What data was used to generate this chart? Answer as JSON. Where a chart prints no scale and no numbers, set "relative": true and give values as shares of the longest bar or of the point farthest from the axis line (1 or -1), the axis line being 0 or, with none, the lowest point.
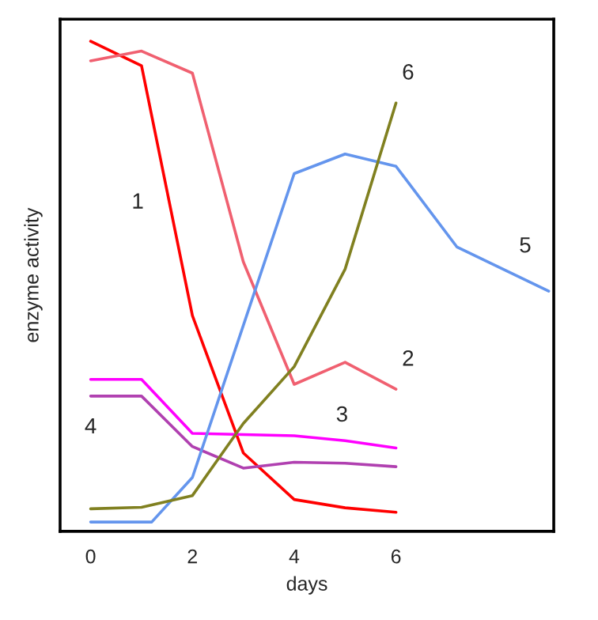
{
  "chart_data": {
    "type": "line",
    "xlabel": "days",
    "ylabel": "enzyme activity",
    "relative": true,
    "xlim": [
      -0.6,
      9.1
    ],
    "xticks": [
      0,
      2,
      4,
      6
    ],
    "grid": false,
    "legend": false,
    "marker": "none",
    "line_style": "solid",
    "series": [
      {
        "name": "1",
        "color": "#ff0000",
        "x": [
          0,
          1,
          2,
          3,
          4,
          5,
          6
        ],
        "values": [
          1.0,
          0.95,
          0.44,
          0.16,
          0.065,
          0.048,
          0.039
        ]
      },
      {
        "name": "2",
        "color": "#f06070",
        "x": [
          0,
          1,
          2,
          3,
          4,
          5,
          6
        ],
        "values": [
          0.96,
          0.98,
          0.935,
          0.55,
          0.3,
          0.345,
          0.29
        ]
      },
      {
        "name": "3",
        "color": "#ff00ff",
        "x": [
          0,
          1,
          2,
          4,
          5,
          6
        ],
        "values": [
          0.31,
          0.31,
          0.2,
          0.195,
          0.185,
          0.17
        ]
      },
      {
        "name": "4",
        "color": "#b040b0",
        "x": [
          0,
          1,
          2,
          3,
          4,
          5,
          6
        ],
        "values": [
          0.276,
          0.276,
          0.173,
          0.129,
          0.141,
          0.139,
          0.132
        ]
      },
      {
        "name": "5",
        "color": "#6495ed",
        "x": [
          0,
          1.2,
          2,
          4,
          5,
          6,
          7.2,
          9
        ],
        "values": [
          0.019,
          0.019,
          0.11,
          0.73,
          0.77,
          0.745,
          0.58,
          0.49
        ]
      },
      {
        "name": "6",
        "color": "#808020",
        "x": [
          0,
          1,
          2,
          3,
          4,
          5,
          6
        ],
        "values": [
          0.046,
          0.049,
          0.073,
          0.22,
          0.336,
          0.535,
          0.874
        ]
      }
    ]
  }
}
